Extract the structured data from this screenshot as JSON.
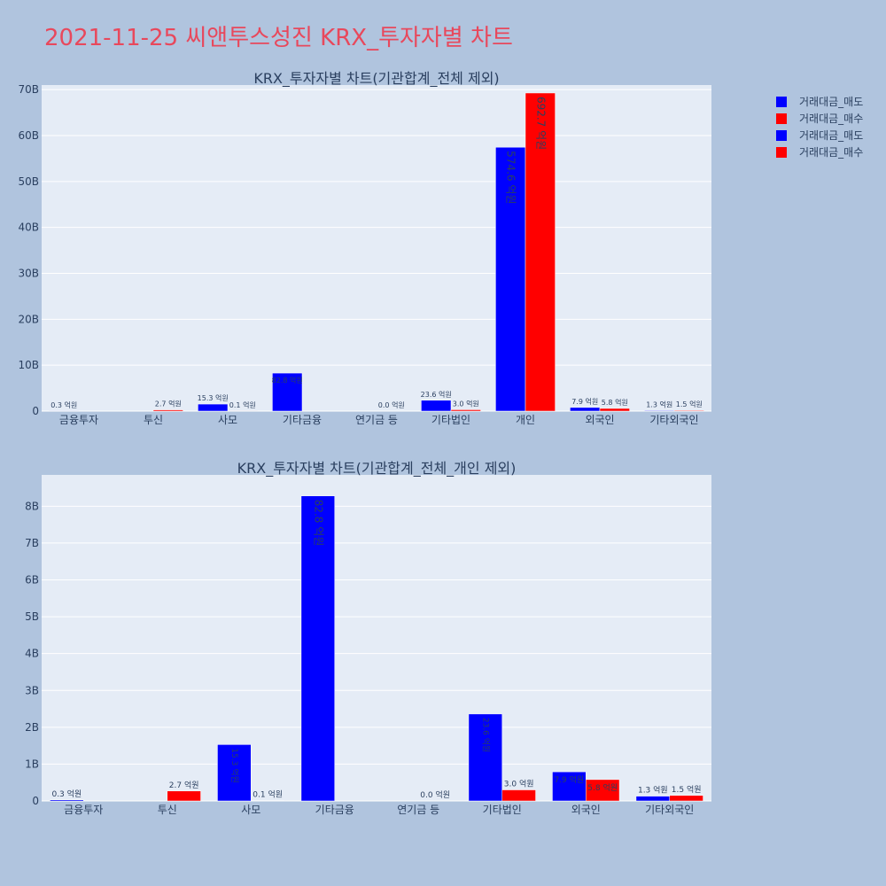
{
  "title": "2021-11-25 씨앤투스성진 KRX_투자자별 차트",
  "legend": [
    {
      "label": "거래대금_매도",
      "color": "#0000ff"
    },
    {
      "label": "거래대금_매수",
      "color": "#ff0000"
    },
    {
      "label": "거래대금_매도",
      "color": "#0000ff"
    },
    {
      "label": "거래대금_매수",
      "color": "#ff0000"
    }
  ],
  "colors": {
    "background": "#b0c4de",
    "plot_bg": "#e5ecf6",
    "title": "#e8485c",
    "sell": "#0000ff",
    "buy": "#ff0000"
  },
  "chart_data": [
    {
      "type": "bar",
      "title": "KRX_투자자별 차트(기관합계_전체 제외)",
      "categories": [
        "금융투자",
        "투신",
        "사모",
        "기타금융",
        "연기금 등",
        "기타법인",
        "개인",
        "외국인",
        "기타외국인"
      ],
      "ylim": [
        0,
        71000000000
      ],
      "yticks": [
        0,
        10000000000,
        20000000000,
        30000000000,
        40000000000,
        50000000000,
        60000000000,
        70000000000
      ],
      "ytick_labels": [
        "0",
        "10B",
        "20B",
        "30B",
        "40B",
        "50B",
        "60B",
        "70B"
      ],
      "grid": true,
      "series": [
        {
          "name": "거래대금_매도",
          "color": "#0000ff",
          "values": [
            30000000,
            0,
            1530000000,
            8280000000,
            0,
            2360000000,
            57460000000,
            790000000,
            130000000
          ],
          "labels": [
            "0.3 억원",
            "",
            "15.3 억원",
            "82.8 억원",
            "",
            "23.6 억원",
            "574.6 억원",
            "7.9 억원",
            "1.3 억원"
          ]
        },
        {
          "name": "거래대금_매수",
          "color": "#ff0000",
          "values": [
            0,
            270000000,
            10000000,
            0,
            0,
            300000000,
            69270000000,
            580000000,
            150000000
          ],
          "labels": [
            "",
            "2.7 억원",
            "0.1 억원",
            "",
            "0.0 억원",
            "3.0 억원",
            "692.7 억원",
            "5.8 억원",
            "1.5 억원"
          ]
        }
      ]
    },
    {
      "type": "bar",
      "title": "KRX_투자자별 차트(기관합계_전체_개인 제외)",
      "categories": [
        "금융투자",
        "투신",
        "사모",
        "기타금융",
        "연기금 등",
        "기타법인",
        "외국인",
        "기타외국인"
      ],
      "ylim": [
        0,
        8850000000
      ],
      "yticks": [
        0,
        1000000000,
        2000000000,
        3000000000,
        4000000000,
        5000000000,
        6000000000,
        7000000000,
        8000000000
      ],
      "ytick_labels": [
        "0",
        "1B",
        "2B",
        "3B",
        "4B",
        "5B",
        "6B",
        "7B",
        "8B"
      ],
      "grid": true,
      "series": [
        {
          "name": "거래대금_매도",
          "color": "#0000ff",
          "values": [
            30000000,
            0,
            1530000000,
            8280000000,
            0,
            2360000000,
            790000000,
            130000000
          ],
          "labels": [
            "0.3 억원",
            "",
            "15.3 억원",
            "82.8 억원",
            "",
            "23.6 억원",
            "7.9 억원",
            "1.3 억원"
          ]
        },
        {
          "name": "거래대금_매수",
          "color": "#ff0000",
          "values": [
            0,
            270000000,
            10000000,
            0,
            0,
            300000000,
            580000000,
            150000000
          ],
          "labels": [
            "",
            "2.7 억원",
            "0.1 억원",
            "",
            "0.0 억원",
            "3.0 억원",
            "5.8 억원",
            "1.5 억원"
          ]
        }
      ]
    }
  ]
}
